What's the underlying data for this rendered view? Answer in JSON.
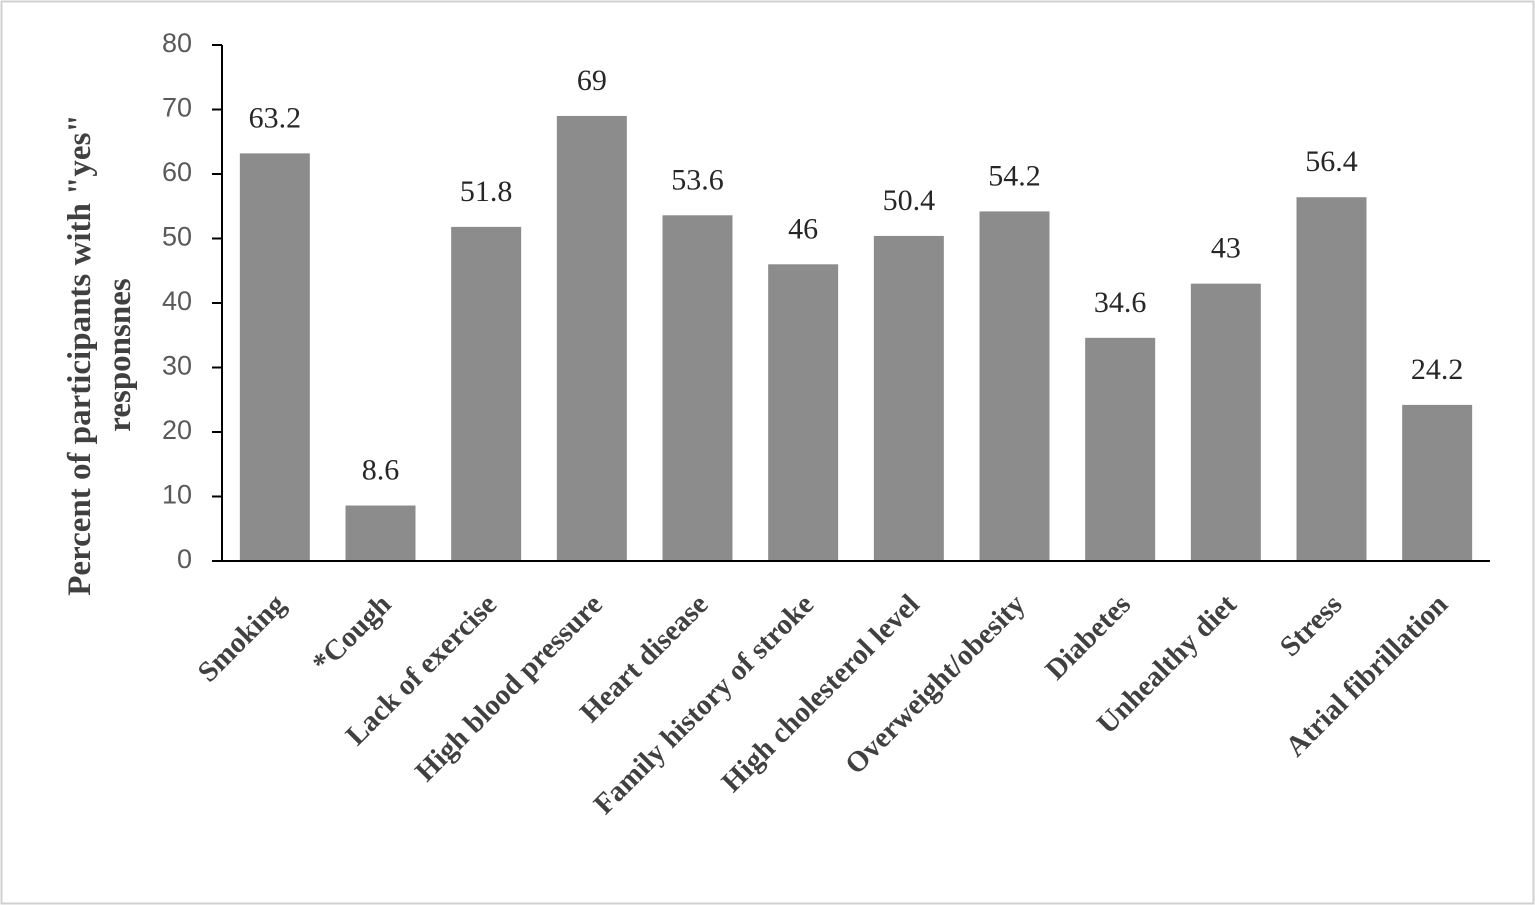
{
  "chart_data": {
    "type": "bar",
    "y_label": "Percent of participants with \"yes\" responsnes",
    "categories": [
      "Smoking",
      "*Cough",
      "Lack of exercise",
      "High blood pressure",
      "Heart disease",
      "Family history of stroke",
      "High cholesterol level",
      "Overweight/obesity",
      "Diabetes",
      "Unhealthy diet",
      "Stress",
      "Atrial fibrillation"
    ],
    "values": [
      63.2,
      8.6,
      51.8,
      69,
      53.6,
      46,
      50.4,
      54.2,
      34.6,
      43,
      56.4,
      24.2
    ],
    "color": "#8c8c8c",
    "ylim": [
      0,
      80
    ],
    "yticks": [
      0,
      10,
      20,
      30,
      40,
      50,
      60,
      70,
      80
    ],
    "grid": false
  }
}
